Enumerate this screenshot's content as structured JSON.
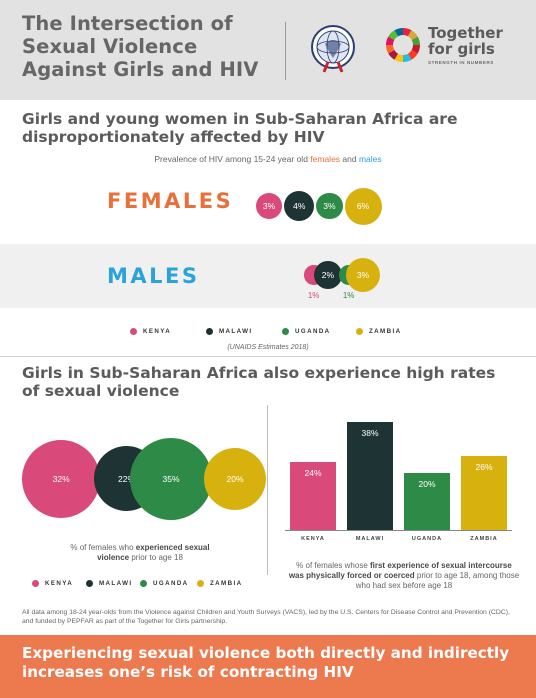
{
  "header": {
    "title": "The Intersection of Sexual Violence Against Girls and HIV",
    "logo_name": "Together for girls",
    "logo_tagline": "STRENGTH IN NUMBERS"
  },
  "section1": {
    "title": "Girls and young women in Sub-Saharan Africa are disproportionately affected by HIV",
    "subtitle_pre": "Prevalence of HIV among 15-24 year old ",
    "subtitle_females": "females",
    "subtitle_and": " and ",
    "subtitle_males": "males",
    "females_label": "FEMALES",
    "males_label": "MALES",
    "source": "(UNAIDS Estimates 2018)"
  },
  "colors": {
    "kenya": "#d9497a",
    "malawi": "#1e3334",
    "uganda": "#2e8a47",
    "zambia": "#d7b20f",
    "females": "#e8703a",
    "males": "#2aa3dc",
    "banner": "#ed7a4f"
  },
  "countries": [
    "KENYA",
    "MALAWI",
    "UGANDA",
    "ZAMBIA"
  ],
  "chart_data": [
    {
      "type": "bubble",
      "title": "Prevalence of HIV among 15-24 year old females and males",
      "categories": [
        "KENYA",
        "MALAWI",
        "UGANDA",
        "ZAMBIA"
      ],
      "series": [
        {
          "name": "FEMALES",
          "values": [
            3,
            4,
            3,
            6
          ],
          "labels": [
            "3%",
            "4%",
            "3%",
            "6%"
          ]
        },
        {
          "name": "MALES",
          "values": [
            1,
            2,
            1,
            3
          ],
          "labels": [
            "1%",
            "2%",
            "1%",
            "3%"
          ]
        }
      ]
    },
    {
      "type": "bubble",
      "title": "% of females who experienced sexual violence prior to age 18",
      "categories": [
        "KENYA",
        "MALAWI",
        "UGANDA",
        "ZAMBIA"
      ],
      "values": [
        32,
        22,
        35,
        20
      ],
      "labels": [
        "32%",
        "22%",
        "35%",
        "20%"
      ]
    },
    {
      "type": "bar",
      "title": "% of females whose first experience of sexual intercourse was physically forced or coerced prior to age 18, among those who had sex before age 18",
      "categories": [
        "KENYA",
        "MALAWI",
        "UGANDA",
        "ZAMBIA"
      ],
      "values": [
        24,
        38,
        20,
        26
      ],
      "labels": [
        "24%",
        "38%",
        "20%",
        "26%"
      ],
      "ylim": [
        0,
        38
      ]
    }
  ],
  "section2": {
    "title": "Girls in Sub-Saharan Africa also experience high rates of sexual violence",
    "bubble_caption_pre": "% of females who ",
    "bubble_caption_bold": "experienced sexual violence",
    "bubble_caption_post": " prior to age 18",
    "bar_caption_pre": "% of females whose ",
    "bar_caption_bold": "first experience of sexual intercourse was physically forced or coerced",
    "bar_caption_post": " prior to age 18, among those who had sex before age 18"
  },
  "footnote": "All data among 18-24 year-olds from the Violence against Children and Youth Surveys (VACS), led by the U.S. Centers for Disease Control and Prevention (CDC), and funded by PEPFAR as part of the Together for Girls partnership.",
  "banner": {
    "text": "Experiencing sexual violence both directly and indirectly increases one’s risk of contracting HIV"
  }
}
